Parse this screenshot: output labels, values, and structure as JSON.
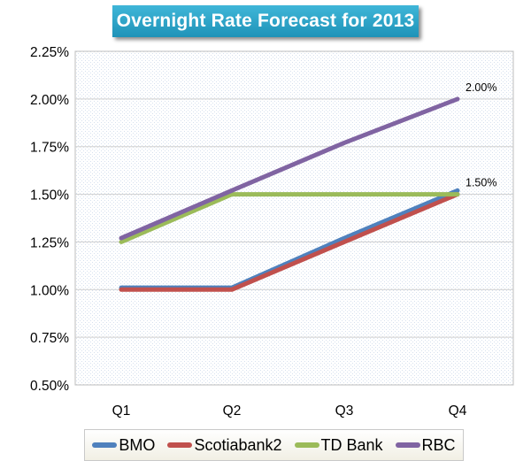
{
  "chart_data": {
    "type": "line",
    "title": "Overnight Rate Forecast for 2013",
    "categories": [
      "Q1",
      "Q2",
      "Q3",
      "Q4"
    ],
    "ylim": [
      0.5,
      2.25
    ],
    "yticks": [
      "0.50%",
      "0.75%",
      "1.00%",
      "1.25%",
      "1.50%",
      "1.75%",
      "2.00%",
      "2.25%"
    ],
    "grid": true,
    "legend_position": "bottom",
    "series": [
      {
        "name": "BMO",
        "values": [
          1.01,
          1.01,
          1.27,
          1.52
        ],
        "color": "#4f81bd"
      },
      {
        "name": "Scotiabank2",
        "values": [
          1.0,
          1.0,
          1.25,
          1.5
        ],
        "color": "#c0504d"
      },
      {
        "name": "TD Bank",
        "values": [
          1.25,
          1.5,
          1.5,
          1.5
        ],
        "color": "#9bbb59"
      },
      {
        "name": "RBC",
        "values": [
          1.27,
          1.52,
          1.77,
          2.0
        ],
        "color": "#8064a2"
      }
    ],
    "annotations": [
      {
        "text": "2.00%",
        "series": "RBC",
        "category": "Q4"
      },
      {
        "text": "1.50%",
        "series": "TD Bank",
        "category": "Q4"
      }
    ]
  }
}
